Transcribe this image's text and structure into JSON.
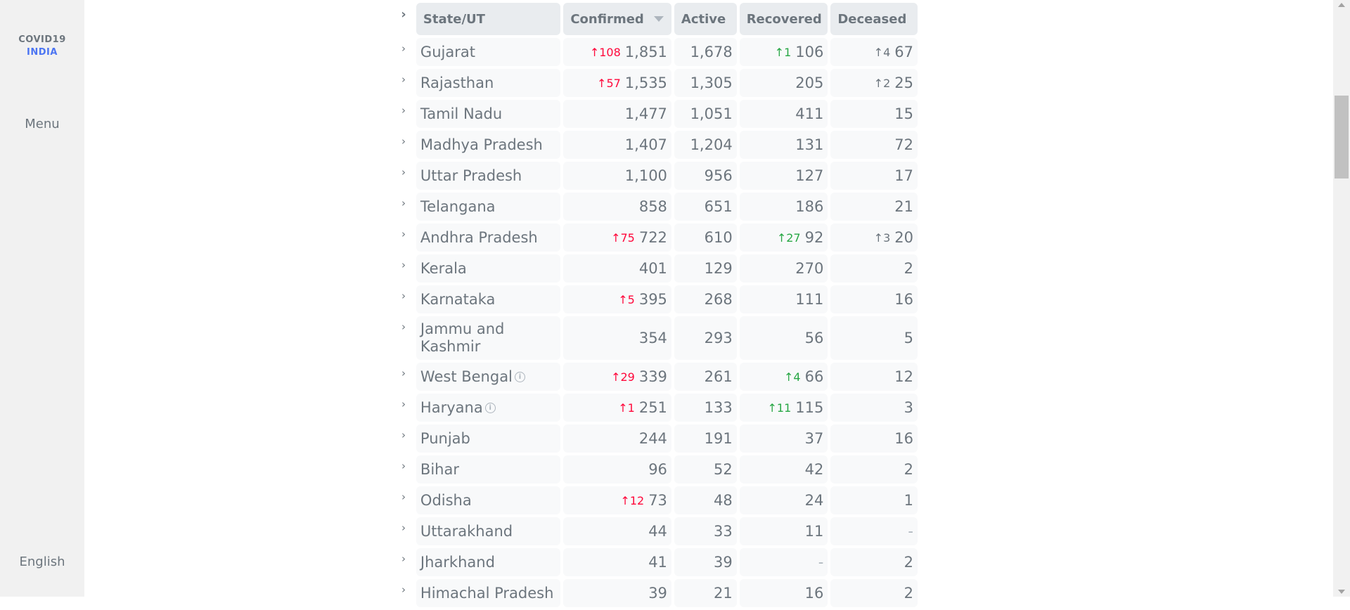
{
  "sidebar": {
    "brand_line1": "COVID19",
    "brand_line2": "INDIA",
    "menu_label": "Menu",
    "language_label": "English"
  },
  "table": {
    "headers": {
      "state": "State/UT",
      "confirmed": "Confirmed",
      "active": "Active",
      "recovered": "Recovered",
      "deceased": "Deceased"
    },
    "rows": [
      {
        "state": "Gujarat",
        "confirmed": "1,851",
        "confirmed_delta": "↑108",
        "active": "1,678",
        "recovered": "106",
        "recovered_delta": "↑1",
        "deceased": "67",
        "deceased_delta": "↑4"
      },
      {
        "state": "Rajasthan",
        "confirmed": "1,535",
        "confirmed_delta": "↑57",
        "active": "1,305",
        "recovered": "205",
        "deceased": "25",
        "deceased_delta": "↑2"
      },
      {
        "state": "Tamil Nadu",
        "confirmed": "1,477",
        "active": "1,051",
        "recovered": "411",
        "deceased": "15"
      },
      {
        "state": "Madhya Pradesh",
        "confirmed": "1,407",
        "active": "1,204",
        "recovered": "131",
        "deceased": "72"
      },
      {
        "state": "Uttar Pradesh",
        "confirmed": "1,100",
        "active": "956",
        "recovered": "127",
        "deceased": "17"
      },
      {
        "state": "Telangana",
        "confirmed": "858",
        "active": "651",
        "recovered": "186",
        "deceased": "21"
      },
      {
        "state": "Andhra Pradesh",
        "confirmed": "722",
        "confirmed_delta": "↑75",
        "active": "610",
        "recovered": "92",
        "recovered_delta": "↑27",
        "deceased": "20",
        "deceased_delta": "↑3"
      },
      {
        "state": "Kerala",
        "confirmed": "401",
        "active": "129",
        "recovered": "270",
        "deceased": "2"
      },
      {
        "state": "Karnataka",
        "confirmed": "395",
        "confirmed_delta": "↑5",
        "active": "268",
        "recovered": "111",
        "deceased": "16"
      },
      {
        "state": "Jammu and Kashmir",
        "confirmed": "354",
        "active": "293",
        "recovered": "56",
        "deceased": "5"
      },
      {
        "state": "West Bengal",
        "info": true,
        "confirmed": "339",
        "confirmed_delta": "↑29",
        "active": "261",
        "recovered": "66",
        "recovered_delta": "↑4",
        "deceased": "12"
      },
      {
        "state": "Haryana",
        "info": true,
        "confirmed": "251",
        "confirmed_delta": "↑1",
        "active": "133",
        "recovered": "115",
        "recovered_delta": "↑11",
        "deceased": "3"
      },
      {
        "state": "Punjab",
        "confirmed": "244",
        "active": "191",
        "recovered": "37",
        "deceased": "16"
      },
      {
        "state": "Bihar",
        "confirmed": "96",
        "active": "52",
        "recovered": "42",
        "deceased": "2"
      },
      {
        "state": "Odisha",
        "confirmed": "73",
        "confirmed_delta": "↑12",
        "active": "48",
        "recovered": "24",
        "deceased": "1"
      },
      {
        "state": "Uttarakhand",
        "confirmed": "44",
        "active": "33",
        "recovered": "11",
        "deceased": "-"
      },
      {
        "state": "Jharkhand",
        "confirmed": "41",
        "active": "39",
        "recovered": "-",
        "deceased": "2"
      },
      {
        "state": "Himachal Pradesh",
        "confirmed": "39",
        "active": "21",
        "recovered": "16",
        "deceased": "2"
      }
    ]
  },
  "icons": {
    "expand": "chevron-right-icon",
    "sort": "sort-desc-icon",
    "info": "info-icon"
  },
  "colors": {
    "confirmed_delta": "#ff073a",
    "recovered_delta": "#28a745",
    "deceased_delta": "#6c757d",
    "brand_accent": "#4c75f2"
  }
}
